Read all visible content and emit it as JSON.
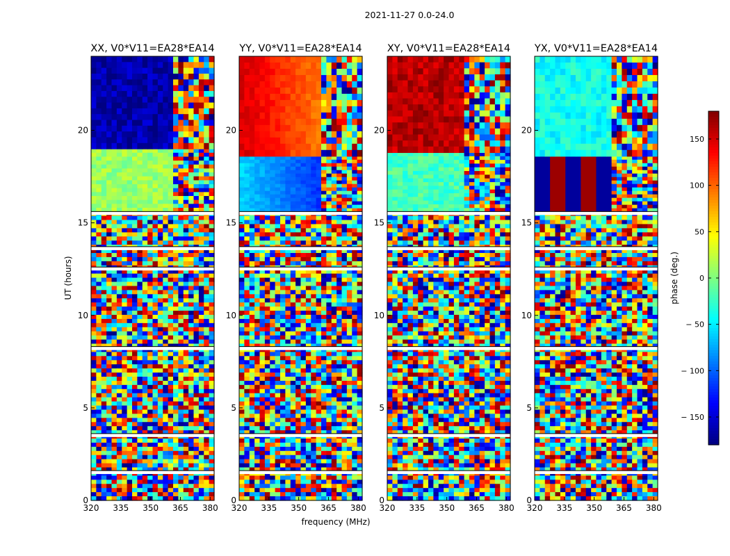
{
  "figure_title": "2021-11-27 0.0-24.0",
  "chart_data": [
    {
      "type": "heatmap",
      "title": "XX, V0*V11=EA28*EA14",
      "xlabel": "frequency (MHz)",
      "ylabel": "UT (hours)",
      "xlim": [
        320,
        382
      ],
      "ylim": [
        0,
        24
      ],
      "xticks": [
        320,
        335,
        350,
        365,
        380
      ],
      "yticks": [
        0,
        5,
        10,
        15,
        20
      ],
      "band_ut_hours": [
        [
          0.0,
          15.6
        ],
        [
          15.6,
          19.0
        ],
        [
          19.0,
          24.0
        ]
      ],
      "band_pattern": [
        "noise",
        "flat",
        "flat"
      ],
      "band_phase_deg": [
        null,
        10,
        -165
      ],
      "fringe_start_mhz": 362
    },
    {
      "type": "heatmap",
      "title": "YY, V0*V11=EA28*EA14",
      "xlabel": "frequency (MHz)",
      "ylabel": "",
      "xlim": [
        320,
        382
      ],
      "ylim": [
        0,
        24
      ],
      "xticks": [
        320,
        335,
        350,
        365,
        380
      ],
      "yticks": [
        0,
        5,
        10,
        15,
        20
      ],
      "band_ut_hours": [
        [
          0.0,
          15.6
        ],
        [
          15.6,
          18.6
        ],
        [
          18.6,
          24.0
        ]
      ],
      "band_pattern": [
        "noise",
        "gradient",
        "gradient"
      ],
      "band_phase_deg": [
        null,
        [
          -60,
          -150
        ],
        [
          150,
          60
        ]
      ],
      "fringe_start_mhz": 362
    },
    {
      "type": "heatmap",
      "title": "XY, V0*V11=EA28*EA14",
      "xlabel": "",
      "ylabel": "",
      "xlim": [
        320,
        382
      ],
      "ylim": [
        0,
        24
      ],
      "xticks": [
        320,
        335,
        350,
        365,
        380
      ],
      "yticks": [
        0,
        5,
        10,
        15,
        20
      ],
      "band_ut_hours": [
        [
          0.0,
          15.6
        ],
        [
          15.6,
          18.8
        ],
        [
          18.8,
          24.0
        ]
      ],
      "band_pattern": [
        "noise",
        "flat",
        "flat"
      ],
      "band_phase_deg": [
        null,
        -20,
        160
      ],
      "fringe_start_mhz": 359
    },
    {
      "type": "heatmap",
      "title": "YX, V0*V11=EA28*EA14",
      "xlabel": "",
      "ylabel": "",
      "xlim": [
        320,
        382
      ],
      "ylim": [
        0,
        24
      ],
      "xticks": [
        320,
        335,
        350,
        365,
        380
      ],
      "yticks": [
        0,
        5,
        10,
        15,
        20
      ],
      "band_ut_hours": [
        [
          0.0,
          15.6
        ],
        [
          15.6,
          18.6
        ],
        [
          18.6,
          24.0
        ]
      ],
      "band_pattern": [
        "noise",
        "stripes",
        "flat"
      ],
      "band_phase_deg": [
        null,
        [
          -170,
          170
        ],
        -40
      ],
      "fringe_start_mhz": 360
    }
  ],
  "colorbar": {
    "label": "phase (deg.)",
    "vmin": -180,
    "vmax": 180,
    "ticks": [
      150,
      100,
      50,
      0,
      -50,
      -100,
      -150
    ],
    "tick_labels": [
      "150",
      "100",
      "50",
      "0",
      "− 50",
      "− 100",
      "− 150"
    ],
    "colormap": "jet"
  }
}
